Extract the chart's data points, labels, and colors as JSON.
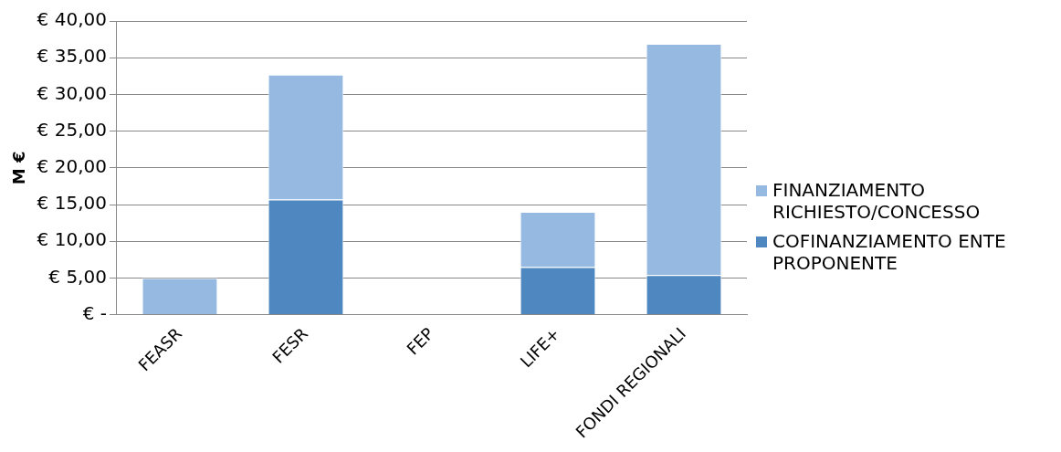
{
  "chart_data": {
    "type": "bar",
    "stacked": true,
    "ylabel": "M €",
    "categories": [
      "FEASR",
      "FESR",
      "FEP",
      "LIFE+",
      "FONDI REGIONALI"
    ],
    "series": [
      {
        "name": "COFINANZIAMENTO ENTE PROPONENTE",
        "color": "#4f88c0",
        "values": [
          0,
          15.7,
          0,
          6.5,
          5.4
        ]
      },
      {
        "name": "FINANZIAMENTO RICHIESTO/CONCESSO",
        "color": "#95b9e0",
        "values": [
          5.0,
          17.0,
          0,
          7.5,
          31.5
        ]
      }
    ],
    "ylim": [
      0,
      40
    ],
    "yticks": [
      {
        "value": 0,
        "label": "€ -"
      },
      {
        "value": 5,
        "label": "€ 5,00"
      },
      {
        "value": 10,
        "label": "€ 10,00"
      },
      {
        "value": 15,
        "label": "€ 15,00"
      },
      {
        "value": 20,
        "label": "€ 20,00"
      },
      {
        "value": 25,
        "label": "€ 25,00"
      },
      {
        "value": 30,
        "label": "€ 30,00"
      },
      {
        "value": 35,
        "label": "€ 35,00"
      },
      {
        "value": 40,
        "label": "€ 40,00"
      }
    ],
    "grid": "y",
    "legend": "right"
  }
}
